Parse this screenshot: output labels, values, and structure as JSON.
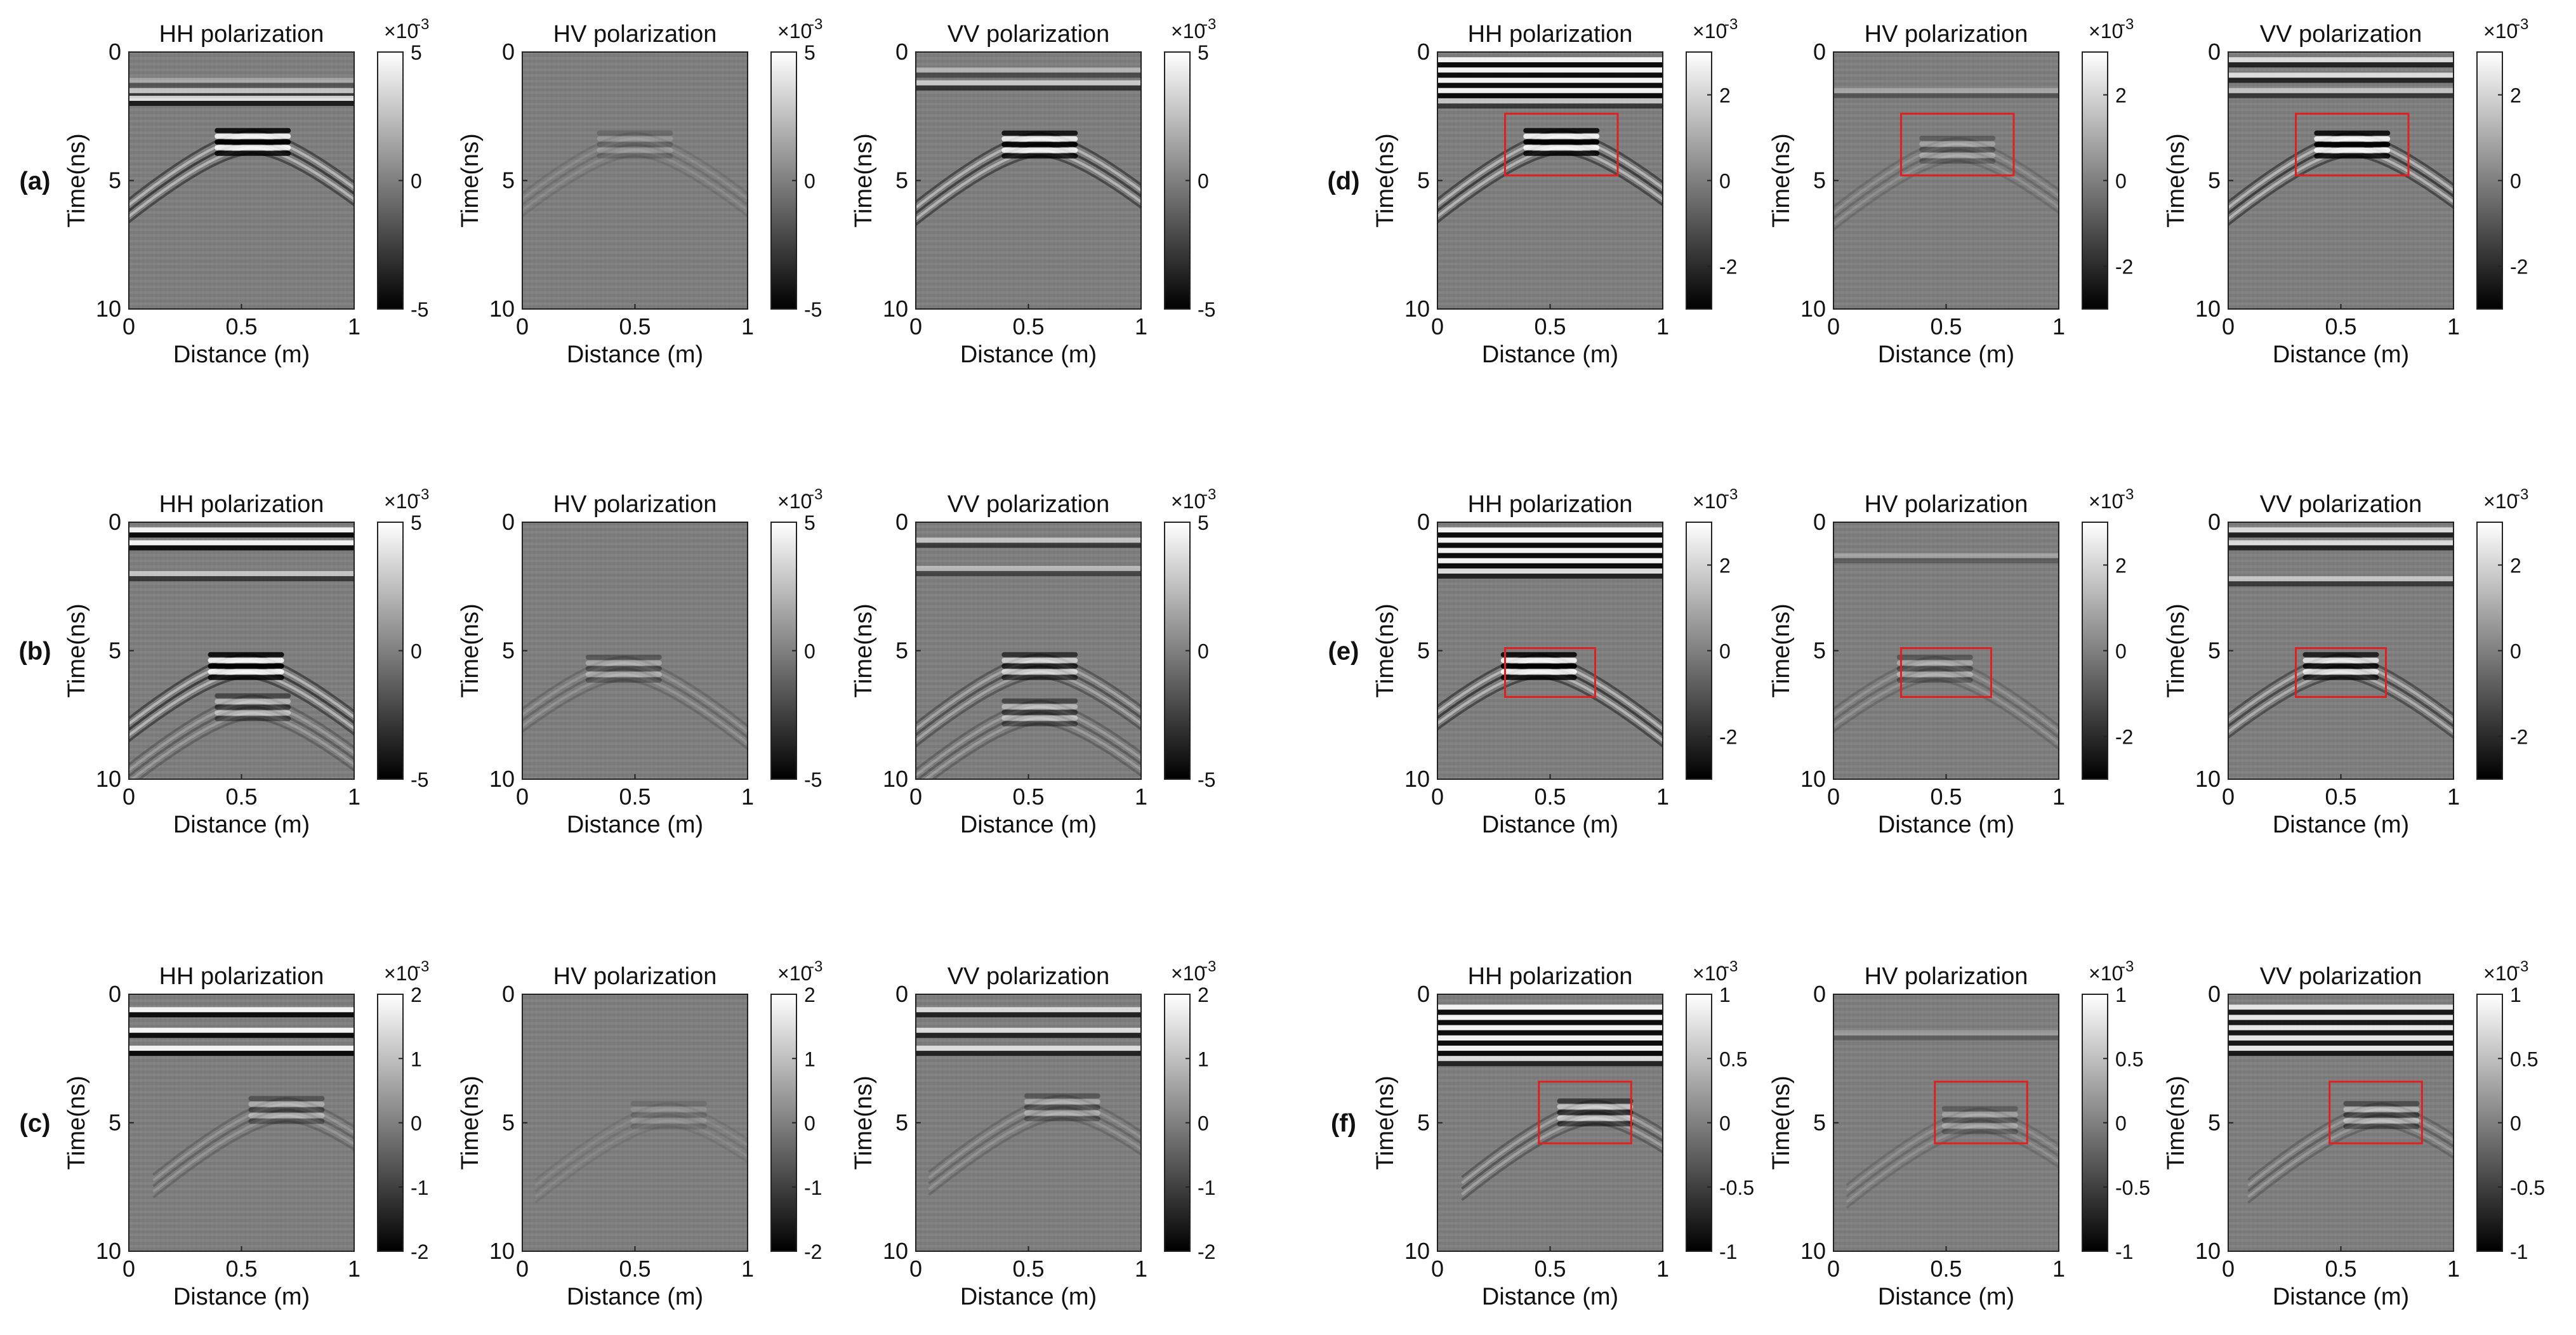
{
  "figure": {
    "x_label": "Distance (m)",
    "y_label": "Time(ns)",
    "x_ticks": [
      "0",
      "0.5",
      "1"
    ],
    "y_ticks": [
      "0",
      "5",
      "10"
    ],
    "exponent_label": "×10",
    "exponent_power": "-3"
  },
  "colors": {
    "box": "#e02020",
    "axis": "#222222",
    "background_gray": "#808080"
  },
  "chart_data": [
    {
      "type": "heatmap",
      "row_label": "(a)",
      "colormap": "gray",
      "colorbar": {
        "range": [
          -5,
          5
        ],
        "ticks": [
          "5",
          "0",
          "-5"
        ]
      },
      "panels": [
        {
          "title": "HH polarization",
          "surface_bands": [
            [
              0.35,
              1.2
            ],
            [
              0.6,
              1.6
            ],
            [
              0.85,
              1.9
            ]
          ],
          "hyperbolas": [
            {
              "x": 0.55,
              "t": 3.5,
              "amp": 1.0
            }
          ],
          "boxes": []
        },
        {
          "title": "HV polarization",
          "surface_bands": [],
          "hyperbolas": [
            {
              "x": 0.5,
              "t": 3.6,
              "amp": 0.2
            }
          ],
          "boxes": []
        },
        {
          "title": "VV polarization",
          "surface_bands": [
            [
              0.45,
              0.8
            ],
            [
              0.65,
              1.3
            ]
          ],
          "hyperbolas": [
            {
              "x": 0.55,
              "t": 3.6,
              "amp": 0.95
            }
          ],
          "boxes": []
        }
      ]
    },
    {
      "type": "heatmap",
      "row_label": "(b)",
      "colormap": "gray",
      "colorbar": {
        "range": [
          -5,
          5
        ],
        "ticks": [
          "5",
          "0",
          "-5"
        ]
      },
      "panels": [
        {
          "title": "HH polarization",
          "surface_bands": [
            [
              1.0,
              0.4
            ],
            [
              1.0,
              0.9
            ],
            [
              0.6,
              2.1
            ]
          ],
          "hyperbolas": [
            {
              "x": 0.52,
              "t": 5.6,
              "amp": 1.0
            },
            {
              "x": 0.55,
              "t": 7.2,
              "amp": 0.5
            }
          ],
          "boxes": []
        },
        {
          "title": "HV polarization",
          "surface_bands": [],
          "hyperbolas": [
            {
              "x": 0.45,
              "t": 5.7,
              "amp": 0.35
            }
          ],
          "boxes": []
        },
        {
          "title": "VV polarization",
          "surface_bands": [
            [
              0.6,
              0.8
            ],
            [
              0.5,
              1.9
            ]
          ],
          "hyperbolas": [
            {
              "x": 0.55,
              "t": 5.6,
              "amp": 0.7
            },
            {
              "x": 0.55,
              "t": 7.4,
              "amp": 0.5
            }
          ],
          "boxes": []
        }
      ]
    },
    {
      "type": "heatmap",
      "row_label": "(c)",
      "colormap": "gray",
      "colorbar": {
        "range": [
          -2,
          2
        ],
        "ticks": [
          "2",
          "1",
          "0",
          "-1",
          "-2"
        ]
      },
      "panels": [
        {
          "title": "HH polarization",
          "surface_bands": [
            [
              1.0,
              0.7
            ],
            [
              1.0,
              1.5
            ],
            [
              1.0,
              2.2
            ]
          ],
          "hyperbolas": [
            {
              "x": 0.7,
              "t": 4.5,
              "amp": 0.4
            }
          ],
          "boxes": []
        },
        {
          "title": "HV polarization",
          "surface_bands": [],
          "hyperbolas": [
            {
              "x": 0.65,
              "t": 4.7,
              "amp": 0.15
            }
          ],
          "boxes": []
        },
        {
          "title": "VV polarization",
          "surface_bands": [
            [
              0.8,
              0.7
            ],
            [
              0.8,
              1.5
            ],
            [
              0.8,
              2.2
            ]
          ],
          "hyperbolas": [
            {
              "x": 0.65,
              "t": 4.4,
              "amp": 0.35
            }
          ],
          "boxes": []
        }
      ]
    },
    {
      "type": "heatmap",
      "row_label": "(d)",
      "colormap": "gray",
      "colorbar": {
        "range": [
          -3,
          3
        ],
        "ticks": [
          "2",
          "0",
          "-2"
        ]
      },
      "panels": [
        {
          "title": "HH polarization",
          "surface_bands": [
            [
              1.0,
              0.4
            ],
            [
              1.0,
              0.8
            ],
            [
              1.0,
              1.2
            ],
            [
              1.0,
              1.6
            ],
            [
              0.6,
              2.0
            ]
          ],
          "hyperbolas": [
            {
              "x": 0.55,
              "t": 3.5,
              "amp": 1.0
            }
          ],
          "boxes": [
            {
              "x0": 0.3,
              "x1": 0.8,
              "t0": 2.4,
              "t1": 4.8
            }
          ]
        },
        {
          "title": "HV polarization",
          "surface_bands": [
            [
              0.35,
              1.6
            ]
          ],
          "hyperbolas": [
            {
              "x": 0.55,
              "t": 3.8,
              "amp": 0.3
            }
          ],
          "boxes": [
            {
              "x0": 0.3,
              "x1": 0.8,
              "t0": 2.4,
              "t1": 4.8
            }
          ]
        },
        {
          "title": "VV polarization",
          "surface_bands": [
            [
              0.8,
              0.4
            ],
            [
              0.8,
              1.0
            ],
            [
              0.6,
              1.6
            ]
          ],
          "hyperbolas": [
            {
              "x": 0.55,
              "t": 3.6,
              "amp": 1.0
            }
          ],
          "boxes": [
            {
              "x0": 0.3,
              "x1": 0.8,
              "t0": 2.4,
              "t1": 4.8
            }
          ]
        }
      ]
    },
    {
      "type": "heatmap",
      "row_label": "(e)",
      "colormap": "gray",
      "colorbar": {
        "range": [
          -3,
          3
        ],
        "ticks": [
          "2",
          "0",
          "-2"
        ]
      },
      "panels": [
        {
          "title": "HH polarization",
          "surface_bands": [
            [
              1.0,
              0.4
            ],
            [
              1.0,
              0.8
            ],
            [
              1.0,
              1.2
            ],
            [
              1.0,
              1.6
            ],
            [
              0.8,
              2.0
            ]
          ],
          "hyperbolas": [
            {
              "x": 0.45,
              "t": 5.6,
              "amp": 1.0
            }
          ],
          "boxes": [
            {
              "x0": 0.3,
              "x1": 0.7,
              "t0": 4.9,
              "t1": 6.8
            }
          ]
        },
        {
          "title": "HV polarization",
          "surface_bands": [
            [
              0.3,
              1.4
            ]
          ],
          "hyperbolas": [
            {
              "x": 0.45,
              "t": 5.7,
              "amp": 0.35
            }
          ],
          "boxes": [
            {
              "x0": 0.3,
              "x1": 0.7,
              "t0": 4.9,
              "t1": 6.8
            }
          ]
        },
        {
          "title": "VV polarization",
          "surface_bands": [
            [
              0.8,
              0.4
            ],
            [
              0.8,
              0.9
            ],
            [
              0.6,
              2.3
            ]
          ],
          "hyperbolas": [
            {
              "x": 0.5,
              "t": 5.6,
              "amp": 0.85
            }
          ],
          "boxes": [
            {
              "x0": 0.3,
              "x1": 0.7,
              "t0": 4.9,
              "t1": 6.8
            }
          ]
        }
      ]
    },
    {
      "type": "heatmap",
      "row_label": "(f)",
      "colormap": "gray",
      "colorbar": {
        "range": [
          -1,
          1
        ],
        "ticks": [
          "1",
          "0.5",
          "0",
          "-0.5",
          "-1"
        ]
      },
      "panels": [
        {
          "title": "HH polarization",
          "surface_bands": [
            [
              1.0,
              0.6
            ],
            [
              1.0,
              1.0
            ],
            [
              1.0,
              1.4
            ],
            [
              1.0,
              1.8
            ],
            [
              1.0,
              2.2
            ],
            [
              0.8,
              2.6
            ]
          ],
          "hyperbolas": [
            {
              "x": 0.7,
              "t": 4.6,
              "amp": 0.6
            }
          ],
          "boxes": [
            {
              "x0": 0.45,
              "x1": 0.86,
              "t0": 3.4,
              "t1": 5.8
            }
          ]
        },
        {
          "title": "HV polarization",
          "surface_bands": [
            [
              0.25,
              1.6
            ]
          ],
          "hyperbolas": [
            {
              "x": 0.65,
              "t": 4.9,
              "amp": 0.3
            }
          ],
          "boxes": [
            {
              "x0": 0.45,
              "x1": 0.86,
              "t0": 3.4,
              "t1": 5.8
            }
          ]
        },
        {
          "title": "VV polarization",
          "surface_bands": [
            [
              0.9,
              0.6
            ],
            [
              0.9,
              1.0
            ],
            [
              0.9,
              1.4
            ],
            [
              0.9,
              1.8
            ],
            [
              0.9,
              2.2
            ]
          ],
          "hyperbolas": [
            {
              "x": 0.68,
              "t": 4.7,
              "amp": 0.45
            }
          ],
          "boxes": [
            {
              "x0": 0.45,
              "x1": 0.86,
              "t0": 3.4,
              "t1": 5.8
            }
          ]
        }
      ]
    }
  ]
}
